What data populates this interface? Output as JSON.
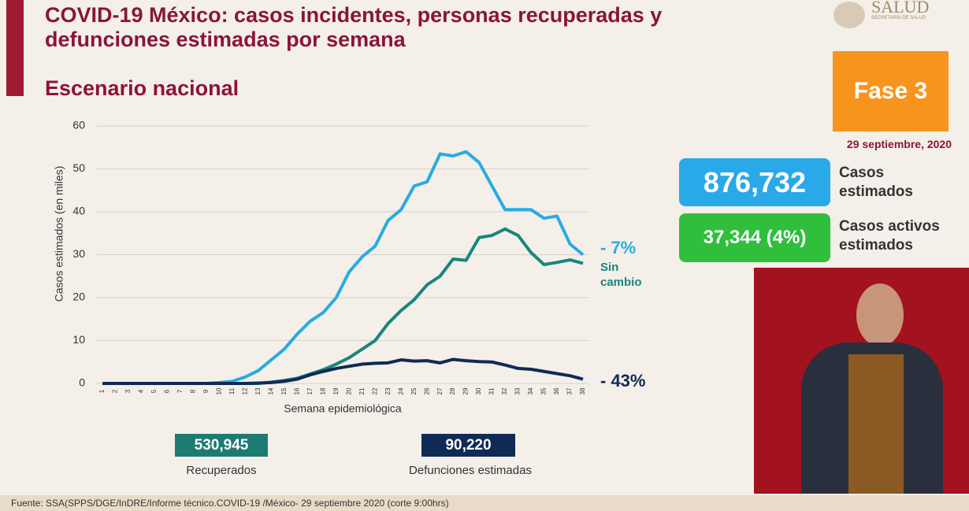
{
  "header": {
    "title": "COVID-19 México: casos incidentes, personas recuperadas y defunciones estimadas por semana",
    "subtitle": "Escenario nacional",
    "logo": "SALUD",
    "logo_sub": "SECRETARÍA DE SALUD"
  },
  "chart_data": {
    "type": "line",
    "categories": [
      "1",
      "2",
      "3",
      "4",
      "5",
      "6",
      "7",
      "8",
      "9",
      "10",
      "11",
      "12",
      "13",
      "14",
      "15",
      "16",
      "17",
      "18",
      "19",
      "20",
      "21",
      "22",
      "23",
      "24",
      "25",
      "26",
      "27",
      "28",
      "29",
      "30",
      "31",
      "32",
      "33",
      "34",
      "35",
      "36",
      "37",
      "38"
    ],
    "series": [
      {
        "color": "#29abe2",
        "values": [
          0,
          0,
          0,
          0,
          0,
          0,
          0,
          0,
          0,
          0.2,
          0.5,
          1.5,
          3,
          5.5,
          8,
          11.5,
          14.5,
          16.5,
          20,
          26,
          29.5,
          32,
          38,
          40.5,
          46,
          47,
          53.5,
          53,
          54,
          51.5,
          46,
          40.5,
          40.5,
          40.5,
          38.5,
          39,
          32.5,
          30
        ]
      },
      {
        "color": "#17877a",
        "values": [
          0,
          0,
          0,
          0,
          0,
          0,
          0,
          0,
          0,
          0,
          0,
          0,
          0,
          0.3,
          0.7,
          1.2,
          2.2,
          3.2,
          4.5,
          6,
          8,
          10,
          14,
          17,
          19.5,
          23,
          25,
          29,
          28.7,
          34,
          34.5,
          36,
          34.5,
          30.5,
          27.7,
          28.2,
          28.8,
          28
        ]
      },
      {
        "color": "#0f2a55",
        "values": [
          0,
          0,
          0,
          0,
          0,
          0,
          0,
          0,
          0,
          0,
          0,
          0,
          0.1,
          0.2,
          0.5,
          1,
          2,
          2.8,
          3.5,
          4,
          4.5,
          4.7,
          4.8,
          5.5,
          5.2,
          5.3,
          4.8,
          5.6,
          5.3,
          5.1,
          5,
          4.3,
          3.5,
          3.3,
          2.8,
          2.3,
          1.8,
          1
        ]
      }
    ],
    "ylim": [
      0,
      60
    ],
    "yticks": [
      0,
      10,
      20,
      30,
      40,
      50,
      60
    ],
    "grid": true,
    "ylabel": "Casos estimados (en miles)",
    "xlabel": "Semana epidemiológica",
    "annotations": [
      "- 7%",
      "Sin cambio",
      "- 43%"
    ]
  },
  "totals": {
    "recovered": "530,945",
    "recovered_label": "Recuperados",
    "deaths": "90,220",
    "deaths_label": "Defunciones estimadas"
  },
  "side": {
    "phase": "Fase 3",
    "date": "29 septiembre, 2020",
    "cases": "876,732",
    "cases_label": "Casos estimados",
    "active": "37,344 (4%)",
    "active_label": "Casos activos estimados"
  },
  "footer": "Fuente: SSA(SPPS/DGE/InDRE/Informe técnico.COVID-19 /México- 29 septiembre 2020 (corte 9:00hrs)"
}
